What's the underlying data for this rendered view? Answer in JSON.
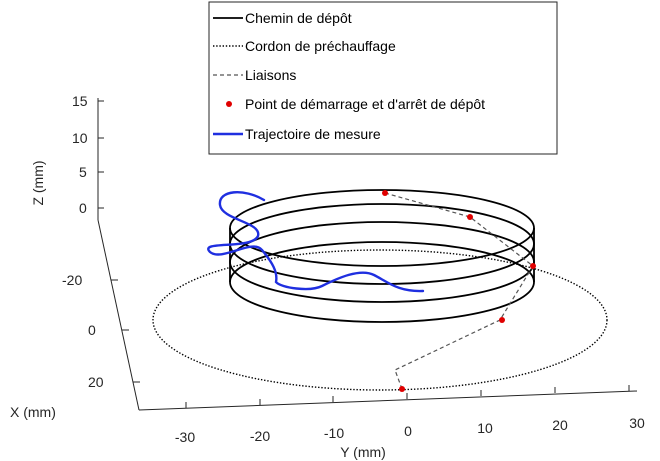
{
  "chart_data": {
    "type": "line",
    "projection": "3d",
    "grid": false,
    "legend_position": "top",
    "xlabel": "X (mm)",
    "ylabel": "Y (mm)",
    "zlabel": "Z (mm)",
    "x_ticks": [
      "-20",
      "0",
      "20"
    ],
    "y_ticks": [
      "-30",
      "-20",
      "-10",
      "0",
      "10",
      "20",
      "30"
    ],
    "z_ticks": [
      "15",
      "10",
      "5",
      "0",
      "-20"
    ],
    "legend": [
      {
        "label": "Chemin de dépôt",
        "style": "solid",
        "color": "#000000"
      },
      {
        "label": "Cordon de préchauffage",
        "style": "dotted",
        "color": "#000000"
      },
      {
        "label": "Liaisons",
        "style": "dashed",
        "color": "#555555"
      },
      {
        "label": "Point de démarrage et d'arrêt de dépôt",
        "style": "marker",
        "color": "#e00000"
      },
      {
        "label": "Trajectoire de mesure",
        "style": "solid",
        "color": "#1f2fe0"
      }
    ],
    "series": [
      {
        "name": "Chemin de dépôt",
        "shape": "helix",
        "center_y": 4,
        "radius": 15,
        "layers": 4
      },
      {
        "name": "Cordon de préchauffage",
        "shape": "circle",
        "center_y": 0,
        "radius": 31
      },
      {
        "name": "Liaisons",
        "shape": "connector"
      },
      {
        "name": "Point de démarrage et d'arrêt de dépôt",
        "shape": "markers",
        "count": 5
      },
      {
        "name": "Trajectoire de mesure",
        "shape": "curve"
      }
    ]
  }
}
